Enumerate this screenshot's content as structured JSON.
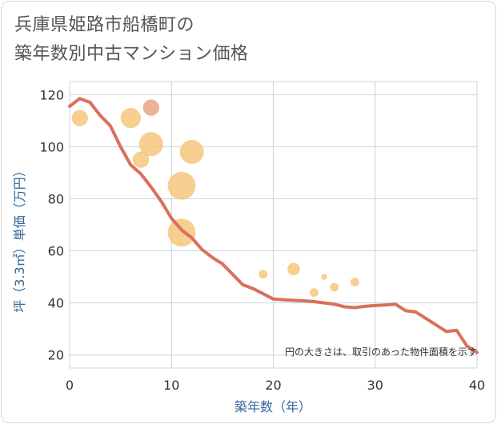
{
  "chart_data": {
    "type": "scatter",
    "title_line1": "兵庫県姫路市船橋町の",
    "title_line2": "築年数別中古マンション価格",
    "xlabel": "築年数（年）",
    "ylabel": "坪（3.3㎡）単価（万円）",
    "note": "円の大きさは、取引のあった物件面積を示す",
    "xlim": [
      0,
      40
    ],
    "ylim": [
      15,
      125
    ],
    "x_ticks": [
      0,
      10,
      20,
      30,
      40
    ],
    "y_ticks": [
      20,
      40,
      60,
      80,
      100,
      120
    ],
    "colors": {
      "bubble": "#f5c77e",
      "bubble_highlight": "#eba487",
      "line": "#d9705a",
      "grid": "#c8d4e0",
      "axis_title": "#336699"
    },
    "bubbles": [
      {
        "x": 1,
        "y": 111,
        "size": 3,
        "highlight": false
      },
      {
        "x": 6,
        "y": 111,
        "size": 4,
        "highlight": false
      },
      {
        "x": 7,
        "y": 95,
        "size": 3,
        "highlight": false
      },
      {
        "x": 8,
        "y": 115,
        "size": 3,
        "highlight": true
      },
      {
        "x": 8,
        "y": 101,
        "size": 5,
        "highlight": false
      },
      {
        "x": 11,
        "y": 85,
        "size": 6,
        "highlight": false
      },
      {
        "x": 11,
        "y": 67,
        "size": 6,
        "highlight": false
      },
      {
        "x": 12,
        "y": 98,
        "size": 5,
        "highlight": false
      },
      {
        "x": 19,
        "y": 51,
        "size": 1,
        "highlight": false
      },
      {
        "x": 22,
        "y": 53,
        "size": 2,
        "highlight": false
      },
      {
        "x": 24,
        "y": 44,
        "size": 1,
        "highlight": false
      },
      {
        "x": 25,
        "y": 50,
        "size": 0.3,
        "highlight": false
      },
      {
        "x": 26,
        "y": 46,
        "size": 1,
        "highlight": false
      },
      {
        "x": 28,
        "y": 48,
        "size": 1,
        "highlight": false
      }
    ],
    "trend": {
      "x": [
        0,
        1,
        2,
        3,
        4,
        5,
        6,
        7,
        8,
        9,
        10,
        11,
        12,
        13,
        14,
        15,
        16,
        17,
        18,
        19,
        20,
        21,
        22,
        23,
        24,
        25,
        26,
        27,
        28,
        29,
        30,
        31,
        32,
        33,
        34,
        35,
        36,
        37,
        38,
        39,
        40
      ],
      "y": [
        115.5,
        118.5,
        117,
        112,
        108,
        100,
        93,
        89.5,
        84.5,
        79,
        72.5,
        68,
        65,
        60.5,
        57.5,
        55,
        51,
        47,
        45.5,
        43.5,
        41.5,
        41.2,
        41,
        40.8,
        40.5,
        40,
        39.5,
        38.5,
        38.2,
        38.7,
        39,
        39.2,
        39.5,
        37,
        36.5,
        34,
        31.5,
        29,
        29.5,
        23.5,
        21
      ]
    }
  }
}
